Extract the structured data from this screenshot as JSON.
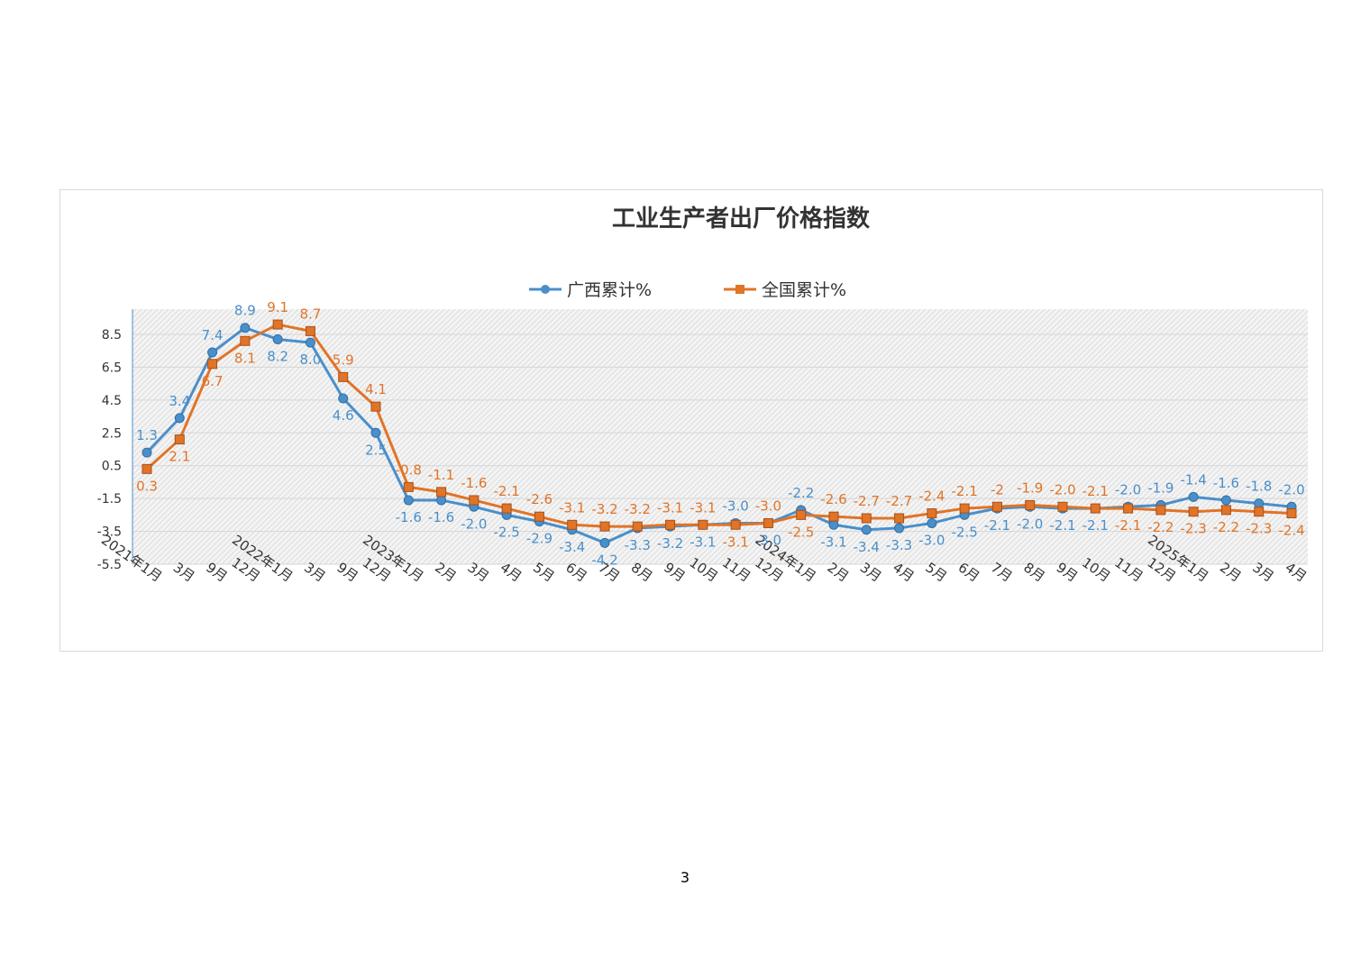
{
  "page": {
    "number": "3"
  },
  "chart_data": {
    "type": "line",
    "title": "工业生产者出厂价格指数",
    "legend_position": "top",
    "grid": true,
    "y_ticks": [
      "8.5",
      "6.5",
      "4.5",
      "2.5",
      "0.5",
      "-1.5",
      "-3.5",
      "-5.5"
    ],
    "ylim": [
      -5.5,
      10
    ],
    "x": [
      "2021年1月",
      "3月",
      "9月",
      "12月",
      "2022年1月",
      "3月",
      "9月",
      "12月",
      "2023年1月",
      "2月",
      "3月",
      "4月",
      "5月",
      "6月",
      "7月",
      "8月",
      "9月",
      "10月",
      "11月",
      "12月",
      "2024年1月",
      "2月",
      "3月",
      "4月",
      "5月",
      "6月",
      "7月",
      "8月",
      "9月",
      "10月",
      "11月",
      "12月",
      "2025年1月",
      "2月",
      "3月",
      "4月"
    ],
    "series": [
      {
        "name": "广西累计%",
        "color": "#4a8fca",
        "marker": "circle",
        "values": [
          1.3,
          3.4,
          7.4,
          8.9,
          8.2,
          8.0,
          4.6,
          2.5,
          -1.6,
          -1.6,
          -2.0,
          -2.5,
          -2.9,
          -3.4,
          -4.2,
          -3.3,
          -3.2,
          -3.1,
          -3.0,
          -3.0,
          -2.2,
          -3.1,
          -3.4,
          -3.3,
          -3.0,
          -2.5,
          -2.1,
          -2.0,
          -2.1,
          -2.1,
          -2.0,
          -1.9,
          -1.4,
          -1.6,
          -1.8,
          -2.0
        ],
        "labels": [
          "1.3",
          "3.4",
          "7.4",
          "8.9",
          "8.2",
          "8.0",
          "4.6",
          "2.5",
          "-1.6",
          "-1.6",
          "-2.0",
          "-2.5",
          "-2.9",
          "-3.4",
          "-4.2",
          "-3.3",
          "-3.2",
          "-3.1",
          "-3.0",
          "-3.0",
          "-2.2",
          "-3.1",
          "-3.4",
          "-3.3",
          "-3.0",
          "-2.5",
          "-2.1",
          "-2.0",
          "-2.1",
          "-2.1",
          "-2.0",
          "-1.9",
          "-1.4",
          "-1.6",
          "-1.8",
          "-2.0"
        ]
      },
      {
        "name": "全国累计%",
        "color": "#e07427",
        "marker": "square",
        "values": [
          0.3,
          2.1,
          6.7,
          8.1,
          9.1,
          8.7,
          5.9,
          4.1,
          -0.8,
          -1.1,
          -1.6,
          -2.1,
          -2.6,
          -3.1,
          -3.2,
          -3.2,
          -3.1,
          -3.1,
          -3.1,
          -3.0,
          -2.5,
          -2.6,
          -2.7,
          -2.7,
          -2.4,
          -2.1,
          -2.0,
          -1.9,
          -2.0,
          -2.1,
          -2.1,
          -2.2,
          -2.3,
          -2.2,
          -2.3,
          -2.4
        ],
        "labels": [
          "0.3",
          "2.1",
          "6.7",
          "8.1",
          "9.1",
          "8.7",
          "5.9",
          "4.1",
          "-0.8",
          "-1.1",
          "-1.6",
          "-2.1",
          "-2.6",
          "-3.1",
          "-3.2",
          "-3.2",
          "-3.1",
          "-3.1",
          "-3.1",
          "-3.0",
          "-2.5",
          "-2.6",
          "-2.7",
          "-2.7",
          "-2.4",
          "-2.1",
          "-2",
          "-1.9",
          "-2.0",
          "-2.1",
          "-2.1",
          "-2.2",
          "-2.3",
          "-2.2",
          "-2.3",
          "-2.4"
        ]
      }
    ]
  }
}
